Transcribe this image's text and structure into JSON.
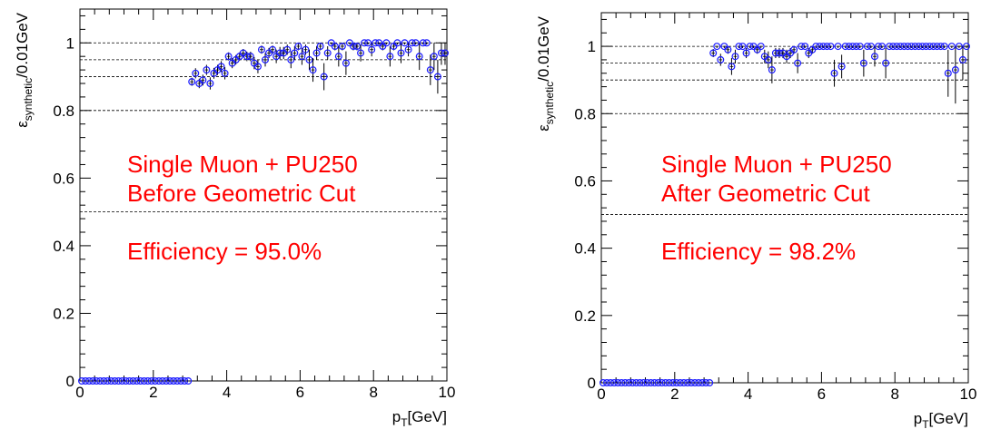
{
  "chart_data": [
    {
      "type": "scatter",
      "xlabel": "p_T[GeV]",
      "ylabel": "ε_synthetic/0.01GeV",
      "xlim": [
        0,
        10
      ],
      "ylim": [
        0,
        1.1
      ],
      "x_ticks": [
        "0",
        "2",
        "4",
        "6",
        "8",
        "10"
      ],
      "y_ticks": [
        "0",
        "0.2",
        "0.4",
        "0.6",
        "0.8",
        "1"
      ],
      "reference_lines": [
        1.0,
        0.95,
        0.9,
        0.8,
        0.5
      ],
      "annotation": [
        "Single Muon + PU250",
        "Before Geometric Cut",
        "Efficiency = 95.0%"
      ],
      "marker_color": "#1a1aff",
      "annotation_color": "#ff0000",
      "series": [
        {
          "x": [
            0.05,
            0.15,
            0.25,
            0.35,
            0.45,
            0.55,
            0.65,
            0.75,
            0.85,
            0.95,
            1.05,
            1.15,
            1.25,
            1.35,
            1.45,
            1.55,
            1.65,
            1.75,
            1.85,
            1.95,
            2.05,
            2.15,
            2.25,
            2.35,
            2.45,
            2.55,
            2.65,
            2.75,
            2.85,
            2.95,
            3.05,
            3.15,
            3.25,
            3.35,
            3.45,
            3.55,
            3.65,
            3.75,
            3.85,
            3.95,
            4.05,
            4.15,
            4.25,
            4.35,
            4.45,
            4.55,
            4.65,
            4.75,
            4.85,
            4.95,
            5.05,
            5.15,
            5.25,
            5.35,
            5.45,
            5.55,
            5.65,
            5.75,
            5.85,
            5.95,
            6.05,
            6.15,
            6.25,
            6.35,
            6.45,
            6.55,
            6.65,
            6.75,
            6.85,
            6.95,
            7.05,
            7.15,
            7.25,
            7.35,
            7.45,
            7.55,
            7.65,
            7.75,
            7.85,
            7.95,
            8.05,
            8.15,
            8.25,
            8.35,
            8.45,
            8.55,
            8.65,
            8.75,
            8.85,
            8.95,
            9.05,
            9.15,
            9.25,
            9.35,
            9.45,
            9.55,
            9.65,
            9.75,
            9.85,
            9.95
          ],
          "y": [
            0,
            0,
            0,
            0,
            0,
            0,
            0,
            0,
            0,
            0,
            0,
            0,
            0,
            0,
            0,
            0,
            0,
            0,
            0,
            0,
            0,
            0,
            0,
            0,
            0,
            0,
            0,
            0,
            0,
            0,
            0.885,
            0.91,
            0.88,
            0.89,
            0.92,
            0.88,
            0.91,
            0.92,
            0.93,
            0.91,
            0.96,
            0.94,
            0.95,
            0.96,
            0.97,
            0.96,
            0.96,
            0.94,
            0.93,
            0.98,
            0.95,
            0.97,
            0.98,
            0.96,
            0.97,
            0.97,
            0.98,
            0.95,
            0.97,
            0.99,
            0.96,
            0.98,
            0.95,
            0.92,
            0.97,
            0.99,
            0.9,
            0.97,
            1.0,
            0.99,
            0.96,
            0.99,
            0.94,
            1.0,
            0.99,
            0.99,
            0.97,
            1.0,
            1.0,
            0.98,
            1.0,
            1.0,
            0.99,
            1.0,
            0.96,
            0.99,
            1.0,
            0.97,
            1.0,
            0.98,
            1.0,
            1.0,
            0.96,
            1.0,
            1.0,
            0.92,
            0.96,
            0.9,
            0.97,
            0.97
          ],
          "err": [
            0,
            0,
            0,
            0,
            0,
            0,
            0,
            0,
            0,
            0,
            0,
            0,
            0,
            0,
            0,
            0,
            0,
            0,
            0,
            0,
            0,
            0,
            0,
            0,
            0,
            0,
            0,
            0,
            0,
            0,
            0.012,
            0.015,
            0.014,
            0.016,
            0.015,
            0.018,
            0.016,
            0.015,
            0.016,
            0.018,
            0.012,
            0.015,
            0.014,
            0.012,
            0.012,
            0.014,
            0.014,
            0.018,
            0.02,
            0.012,
            0.02,
            0.015,
            0.012,
            0.02,
            0.018,
            0.018,
            0.015,
            0.025,
            0.02,
            0.012,
            0.025,
            0.015,
            0.03,
            0.035,
            0.02,
            0.012,
            0.04,
            0.02,
            0.005,
            0.012,
            0.03,
            0.012,
            0.035,
            0.005,
            0.012,
            0.012,
            0.025,
            0.005,
            0.005,
            0.02,
            0.005,
            0.005,
            0.012,
            0.005,
            0.03,
            0.012,
            0.005,
            0.03,
            0.005,
            0.02,
            0.005,
            0.005,
            0.04,
            0.005,
            0.005,
            0.045,
            0.04,
            0.05,
            0.035,
            0.035
          ]
        }
      ]
    },
    {
      "type": "scatter",
      "xlabel": "p_T[GeV]",
      "ylabel": "ε_synthetic/0.01GeV",
      "xlim": [
        0,
        10
      ],
      "ylim": [
        0,
        1.1
      ],
      "x_ticks": [
        "0",
        "2",
        "4",
        "6",
        "8",
        "10"
      ],
      "y_ticks": [
        "0",
        "0.2",
        "0.4",
        "0.6",
        "0.8",
        "1"
      ],
      "reference_lines": [
        1.0,
        0.95,
        0.9,
        0.8,
        0.5
      ],
      "annotation": [
        "Single Muon + PU250",
        "After Geometric Cut",
        "Efficiency = 98.2%"
      ],
      "marker_color": "#1a1aff",
      "annotation_color": "#ff0000",
      "series": [
        {
          "x": [
            0.05,
            0.15,
            0.25,
            0.35,
            0.45,
            0.55,
            0.65,
            0.75,
            0.85,
            0.95,
            1.05,
            1.15,
            1.25,
            1.35,
            1.45,
            1.55,
            1.65,
            1.75,
            1.85,
            1.95,
            2.05,
            2.15,
            2.25,
            2.35,
            2.45,
            2.55,
            2.65,
            2.75,
            2.85,
            2.95,
            3.05,
            3.15,
            3.25,
            3.35,
            3.45,
            3.55,
            3.65,
            3.75,
            3.85,
            3.95,
            4.05,
            4.15,
            4.25,
            4.35,
            4.45,
            4.55,
            4.65,
            4.75,
            4.85,
            4.95,
            5.05,
            5.15,
            5.25,
            5.35,
            5.45,
            5.55,
            5.65,
            5.75,
            5.85,
            5.95,
            6.05,
            6.15,
            6.25,
            6.35,
            6.45,
            6.55,
            6.65,
            6.75,
            6.85,
            6.95,
            7.05,
            7.15,
            7.25,
            7.35,
            7.45,
            7.55,
            7.65,
            7.75,
            7.85,
            7.95,
            8.05,
            8.15,
            8.25,
            8.35,
            8.45,
            8.55,
            8.65,
            8.75,
            8.85,
            8.95,
            9.05,
            9.15,
            9.25,
            9.35,
            9.45,
            9.55,
            9.65,
            9.75,
            9.85,
            9.95
          ],
          "y": [
            0,
            0,
            0,
            0,
            0,
            0,
            0,
            0,
            0,
            0,
            0,
            0,
            0,
            0,
            0,
            0,
            0,
            0,
            0,
            0,
            0,
            0,
            0,
            0,
            0,
            0,
            0,
            0,
            0,
            0,
            0.98,
            1.0,
            0.96,
            1.0,
            0.99,
            0.94,
            0.97,
            1.0,
            1.0,
            0.98,
            1.0,
            1.0,
            0.99,
            1.0,
            0.97,
            0.96,
            0.93,
            0.98,
            0.98,
            0.98,
            0.97,
            0.98,
            0.99,
            0.95,
            1.0,
            1.0,
            0.98,
            0.99,
            1.0,
            1.0,
            1.0,
            1.0,
            1.0,
            0.92,
            1.0,
            0.94,
            1.0,
            1.0,
            1.0,
            1.0,
            1.0,
            0.95,
            1.0,
            1.0,
            0.97,
            1.0,
            1.0,
            0.95,
            1.0,
            1.0,
            1.0,
            1.0,
            1.0,
            1.0,
            1.0,
            1.0,
            1.0,
            1.0,
            1.0,
            1.0,
            1.0,
            1.0,
            1.0,
            1.0,
            0.92,
            1.0,
            0.93,
            1.0,
            0.96,
            1.0
          ],
          "err": [
            0,
            0,
            0,
            0,
            0,
            0,
            0,
            0,
            0,
            0,
            0,
            0,
            0,
            0,
            0,
            0,
            0,
            0,
            0,
            0,
            0,
            0,
            0,
            0,
            0,
            0,
            0,
            0,
            0,
            0,
            0.012,
            0.005,
            0.018,
            0.005,
            0.012,
            0.025,
            0.02,
            0.005,
            0.005,
            0.015,
            0.005,
            0.005,
            0.012,
            0.005,
            0.02,
            0.025,
            0.04,
            0.015,
            0.015,
            0.015,
            0.02,
            0.015,
            0.012,
            0.03,
            0.005,
            0.005,
            0.015,
            0.012,
            0.005,
            0.005,
            0.005,
            0.005,
            0.005,
            0.04,
            0.005,
            0.035,
            0.005,
            0.005,
            0.005,
            0.005,
            0.005,
            0.04,
            0.005,
            0.005,
            0.03,
            0.005,
            0.005,
            0.045,
            0.005,
            0.005,
            0.005,
            0.005,
            0.005,
            0.005,
            0.005,
            0.005,
            0.005,
            0.005,
            0.005,
            0.005,
            0.005,
            0.005,
            0.005,
            0.005,
            0.07,
            0.005,
            0.1,
            0.005,
            0.06,
            0.005
          ]
        }
      ]
    }
  ]
}
